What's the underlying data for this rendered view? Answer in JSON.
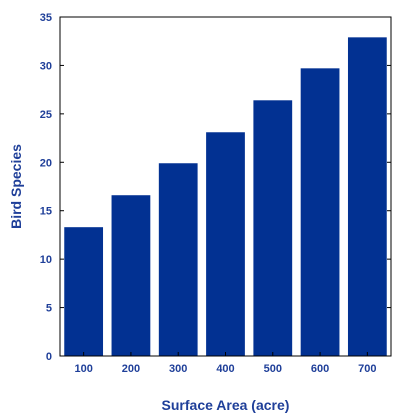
{
  "chart_data": {
    "type": "bar",
    "title": "",
    "xlabel": "Surface Area (acre)",
    "ylabel": "Bird Species",
    "categories": [
      "100",
      "200",
      "300",
      "400",
      "500",
      "600",
      "700"
    ],
    "values": [
      13.3,
      16.6,
      19.9,
      23.1,
      26.4,
      29.7,
      32.9
    ],
    "ylim": [
      0,
      35
    ],
    "yticks": [
      "0",
      "5",
      "10",
      "15",
      "20",
      "25",
      "30",
      "35"
    ],
    "ytick_values": [
      0,
      5,
      10,
      15,
      20,
      25,
      30,
      35
    ],
    "grid": false,
    "legend": "none",
    "colors": {
      "bar": "#023192",
      "text": "#1f3f99",
      "axis": "#000000"
    }
  }
}
